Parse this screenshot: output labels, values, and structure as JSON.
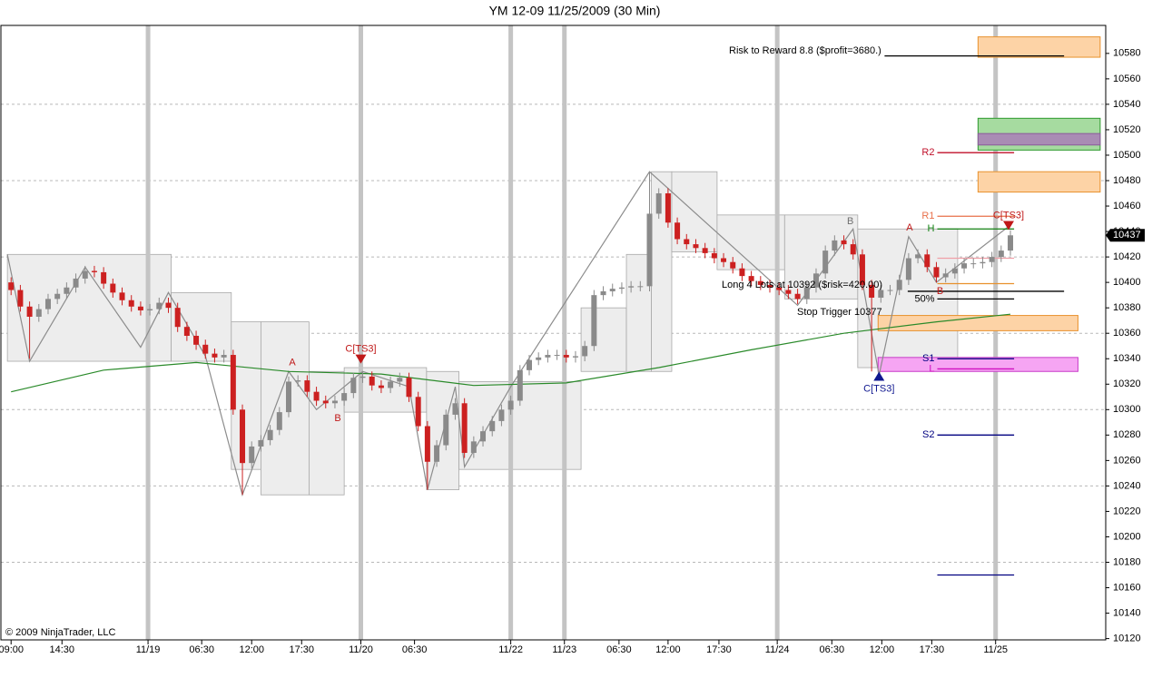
{
  "chart_data": {
    "type": "candlestick",
    "title": "YM 12-09  11/25/2009 (30 Min)",
    "copyright": "© 2009 NinjaTrader, LLC",
    "xlim": [
      -1.1,
      118.3
    ],
    "xticks": [
      {
        "value": 0,
        "label": "09:00"
      },
      {
        "value": 5.5,
        "label": "14:30"
      },
      {
        "value": 14.8,
        "label": "11/19"
      },
      {
        "value": 20.6,
        "label": "06:30"
      },
      {
        "value": 26,
        "label": "12:00"
      },
      {
        "value": 31.4,
        "label": "17:30"
      },
      {
        "value": 37.8,
        "label": "11/20"
      },
      {
        "value": 43.6,
        "label": "06:30"
      },
      {
        "value": 54,
        "label": "11/22"
      },
      {
        "value": 59.8,
        "label": "11/23"
      },
      {
        "value": 65.7,
        "label": "06:30"
      },
      {
        "value": 71,
        "label": "12:00"
      },
      {
        "value": 76.5,
        "label": "17:30"
      },
      {
        "value": 82.8,
        "label": "11/24"
      },
      {
        "value": 88.7,
        "label": "06:30"
      },
      {
        "value": 94.1,
        "label": "12:00"
      },
      {
        "value": 99.5,
        "label": "17:30"
      },
      {
        "value": 106.4,
        "label": "11/25"
      }
    ],
    "ylim": [
      10119,
      10602
    ],
    "yticks": [
      10120,
      10140,
      10160,
      10180,
      10200,
      10220,
      10240,
      10260,
      10280,
      10300,
      10320,
      10340,
      10360,
      10380,
      10400,
      10420,
      10440,
      10460,
      10480,
      10500,
      10520,
      10540,
      10560,
      10580
    ],
    "ygrid": [
      10180,
      10240,
      10300,
      10360,
      10420,
      10480,
      10540
    ],
    "session_lines": [
      14.8,
      37.8,
      54,
      59.8,
      82.8,
      106.4
    ],
    "up_color": "#8a8a8a",
    "down_color": "#cc2020",
    "open": [
      10400,
      10394,
      10381,
      10373,
      10379,
      10387,
      10391,
      10396,
      10403,
      10409,
      10408,
      10399,
      10392,
      10386,
      10381,
      10378,
      10379,
      10384,
      10380,
      10365,
      10358,
      10351,
      10344,
      10341,
      10343,
      10300,
      10258,
      10271,
      10276,
      10284,
      10298,
      10322,
      10323,
      10314,
      10307,
      10305,
      10307,
      10313,
      10325,
      10326,
      10319,
      10317,
      10322,
      10325,
      10310,
      10287,
      10259,
      10272,
      10296,
      10305,
      10266,
      10275,
      10283,
      10291,
      10300,
      10307,
      10331,
      10339,
      10341,
      10343,
      10343,
      10341,
      10342,
      10350,
      10390,
      10393,
      10395,
      10396,
      10397,
      10397,
      10454,
      10470,
      10447,
      10434,
      10430,
      10427,
      10423,
      10419,
      10416,
      10411,
      10405,
      10401,
      10398,
      10396,
      10394,
      10391,
      10387,
      10396,
      10407,
      10425,
      10433,
      10430,
      10422,
      10398,
      10388,
      10394,
      10394,
      10402,
      10419,
      10422,
      10412,
      10404,
      10407,
      10411,
      10415,
      10415,
      10416,
      10420,
      10425
    ],
    "high": [
      10404,
      10398,
      10385,
      10383,
      10391,
      10395,
      10400,
      10407,
      10413,
      10413,
      10412,
      10403,
      10396,
      10390,
      10385,
      10383,
      10388,
      10388,
      10384,
      10369,
      10362,
      10355,
      10348,
      10347,
      10347,
      10304,
      10275,
      10280,
      10288,
      10302,
      10326,
      10327,
      10327,
      10318,
      10311,
      10311,
      10317,
      10329,
      10330,
      10330,
      10323,
      10326,
      10329,
      10329,
      10314,
      10291,
      10276,
      10300,
      10309,
      10309,
      10279,
      10287,
      10295,
      10304,
      10311,
      10335,
      10343,
      10345,
      10347,
      10347,
      10347,
      10346,
      10354,
      10394,
      10397,
      10399,
      10400,
      10401,
      10401,
      10487,
      10474,
      10474,
      10451,
      10438,
      10434,
      10431,
      10427,
      10423,
      10420,
      10415,
      10409,
      10405,
      10402,
      10400,
      10398,
      10395,
      10400,
      10411,
      10429,
      10437,
      10437,
      10434,
      10426,
      10402,
      10398,
      10398,
      10406,
      10423,
      10426,
      10426,
      10416,
      10411,
      10415,
      10419,
      10419,
      10420,
      10424,
      10429,
      10441
    ],
    "low": [
      10390,
      10377,
      10340,
      10369,
      10375,
      10383,
      10387,
      10392,
      10399,
      10404,
      10395,
      10388,
      10382,
      10377,
      10374,
      10374,
      10375,
      10376,
      10361,
      10354,
      10347,
      10340,
      10337,
      10337,
      10296,
      10233,
      10254,
      10267,
      10272,
      10280,
      10294,
      10318,
      10310,
      10303,
      10301,
      10301,
      10303,
      10309,
      10321,
      10315,
      10313,
      10313,
      10318,
      10306,
      10283,
      10237,
      10255,
      10268,
      10292,
      10262,
      10262,
      10271,
      10279,
      10287,
      10296,
      10303,
      10327,
      10335,
      10337,
      10339,
      10337,
      10337,
      10338,
      10346,
      10386,
      10389,
      10391,
      10392,
      10393,
      10393,
      10450,
      10443,
      10430,
      10426,
      10423,
      10419,
      10415,
      10412,
      10407,
      10401,
      10397,
      10394,
      10392,
      10390,
      10387,
      10383,
      10383,
      10392,
      10403,
      10421,
      10426,
      10418,
      10394,
      10330,
      10384,
      10390,
      10390,
      10398,
      10415,
      10408,
      10400,
      10400,
      10403,
      10407,
      10411,
      10411,
      10412,
      10416,
      10421
    ],
    "close": [
      10394,
      10381,
      10373,
      10379,
      10387,
      10391,
      10396,
      10403,
      10409,
      10408,
      10399,
      10392,
      10386,
      10381,
      10378,
      10379,
      10384,
      10380,
      10365,
      10358,
      10351,
      10344,
      10341,
      10343,
      10300,
      10258,
      10271,
      10276,
      10284,
      10298,
      10322,
      10323,
      10314,
      10307,
      10305,
      10307,
      10313,
      10325,
      10326,
      10319,
      10317,
      10322,
      10325,
      10310,
      10287,
      10259,
      10272,
      10296,
      10305,
      10266,
      10275,
      10283,
      10291,
      10300,
      10307,
      10331,
      10339,
      10341,
      10343,
      10343,
      10341,
      10342,
      10350,
      10390,
      10393,
      10395,
      10396,
      10397,
      10397,
      10454,
      10470,
      10447,
      10434,
      10430,
      10427,
      10423,
      10419,
      10416,
      10411,
      10405,
      10401,
      10398,
      10396,
      10394,
      10391,
      10387,
      10396,
      10407,
      10425,
      10433,
      10430,
      10422,
      10398,
      10388,
      10394,
      10394,
      10402,
      10419,
      10422,
      10412,
      10404,
      10407,
      10411,
      10415,
      10415,
      10416,
      10420,
      10425,
      10437
    ],
    "last_price": 10437,
    "channel": {
      "color": "#ededed",
      "border": "#a8a8a8",
      "x_start": [
        -0.4,
        17.3,
        23.8,
        27,
        32.2,
        36,
        44.9,
        48.4,
        61.6,
        66.5,
        69.2,
        71.4,
        76.3,
        83.6,
        91.5
      ],
      "x_end": [
        17.3,
        23.8,
        27,
        32.2,
        36,
        44.9,
        48.4,
        61.6,
        66.5,
        69.2,
        71.4,
        76.3,
        83.6,
        91.5,
        102.3
      ],
      "upper": [
        10422,
        10392,
        10369,
        10369,
        10330,
        10333,
        10330,
        10322,
        10380,
        10422,
        10487,
        10487,
        10453,
        10453,
        10442
      ],
      "lower": [
        10338,
        10338,
        10253,
        10233,
        10233,
        10298,
        10237,
        10253,
        10330,
        10330,
        10330,
        10424,
        10410,
        10387,
        10333
      ]
    },
    "zigzag": {
      "color": "#8c8c8c",
      "x": [
        -0.4,
        2,
        8,
        14,
        17,
        21,
        25,
        30,
        33,
        38,
        43,
        45,
        48,
        49,
        54,
        69,
        85,
        91,
        93.8,
        97,
        100,
        107.8
      ],
      "values": [
        10422,
        10338,
        10412,
        10349,
        10392,
        10342,
        10233,
        10330,
        10300,
        10330,
        10318,
        10237,
        10318,
        10255,
        10318,
        10487,
        10382,
        10442,
        10327,
        10436,
        10400,
        10444
      ]
    },
    "moving_average": {
      "color": "#2a8a2a",
      "x": [
        0,
        10,
        20,
        30,
        40,
        50,
        60,
        70,
        80,
        90,
        100,
        108
      ],
      "values": [
        10314,
        10331,
        10337,
        10330,
        10328,
        10319,
        10321,
        10333,
        10347,
        10360,
        10369,
        10375
      ]
    },
    "zones": [
      {
        "x0": 104.5,
        "x1": 117.7,
        "top": 10593,
        "bottom": 10577,
        "color": "#fdd3a6",
        "border": "#e8912c"
      },
      {
        "x0": 104.5,
        "x1": 117.7,
        "top": 10529,
        "bottom": 10504,
        "color": "#a6dba0",
        "border": "#2e9a2e"
      },
      {
        "x0": 104.5,
        "x1": 117.7,
        "top": 10517,
        "bottom": 10508,
        "color": "#a98cb4",
        "border": "#8a5a9a"
      },
      {
        "x0": 104.5,
        "x1": 117.7,
        "top": 10487,
        "bottom": 10471,
        "color": "#fdd3a6",
        "border": "#e8912c"
      },
      {
        "x0": 93.7,
        "x1": 115.3,
        "top": 10374,
        "bottom": 10362,
        "color": "#fdd3a6",
        "border": "#e8912c"
      },
      {
        "x0": 93.7,
        "x1": 115.3,
        "top": 10341,
        "bottom": 10330,
        "color": "#f6a5f3",
        "border": "#c83cc8"
      }
    ],
    "levels": [
      {
        "label": "R2",
        "value": 10502,
        "x0": 100.1,
        "x1": 108.4,
        "color": "#c0102a"
      },
      {
        "label": "R1",
        "value": 10452,
        "x0": 100.1,
        "x1": 108.4,
        "color": "#e8704a"
      },
      {
        "label": "H",
        "value": 10442,
        "x0": 100.1,
        "x1": 108.4,
        "color": "#108010"
      },
      {
        "label": "50%",
        "value": 10387,
        "x0": 100.1,
        "x1": 108.4,
        "color": "#000000"
      },
      {
        "label": "S1",
        "value": 10340,
        "x0": 100.1,
        "x1": 108.4,
        "color": "#000080"
      },
      {
        "label": "L",
        "value": 10332,
        "x0": 100.1,
        "x1": 108.4,
        "color": "#d010c0"
      },
      {
        "label": "S2",
        "value": 10280,
        "x0": 100.1,
        "x1": 108.4,
        "color": "#000080"
      },
      {
        "value": 10170,
        "x0": 100.1,
        "x1": 108.4,
        "color": "#000080"
      },
      {
        "value": 10578,
        "x0": 94.4,
        "x1": 113.8,
        "color": "#000000"
      },
      {
        "value": 10393,
        "x0": 96.9,
        "x1": 113.8,
        "color": "#000000"
      },
      {
        "value": 10419,
        "x0": 100.1,
        "x1": 108.4,
        "color": "#f0a0a8"
      },
      {
        "value": 10399,
        "x0": 100.1,
        "x1": 108.4,
        "color": "#e8912c"
      }
    ],
    "signals": [
      {
        "label": "C[TS3]",
        "x": 37.8,
        "value": 10339,
        "direction": "down",
        "color": "#c01818"
      },
      {
        "label": "C[TS3]",
        "x": 93.8,
        "value": 10327,
        "direction": "up",
        "color": "#101890"
      },
      {
        "label": "C[TS3]",
        "x": 107.8,
        "value": 10444,
        "direction": "down",
        "color": "#c01818"
      }
    ],
    "swing_labels": [
      {
        "label": "A",
        "x": 30.4,
        "value": 10337,
        "color": "#c01818"
      },
      {
        "label": "B",
        "x": 35.3,
        "value": 10293,
        "color": "#c01818"
      },
      {
        "label": "B",
        "x": 90.7,
        "value": 10448,
        "color": "#707070"
      },
      {
        "label": "A",
        "x": 97.1,
        "value": 10443,
        "color": "#c01818"
      },
      {
        "label": "B",
        "x": 100.4,
        "value": 10393,
        "color": "#c01818"
      }
    ],
    "annotations": [
      "Risk to Reward 8.8 ($profit=3680.)",
      "Long 4 Lots at 10392 ($risk=420.00)",
      "Stop Trigger 10377"
    ]
  }
}
